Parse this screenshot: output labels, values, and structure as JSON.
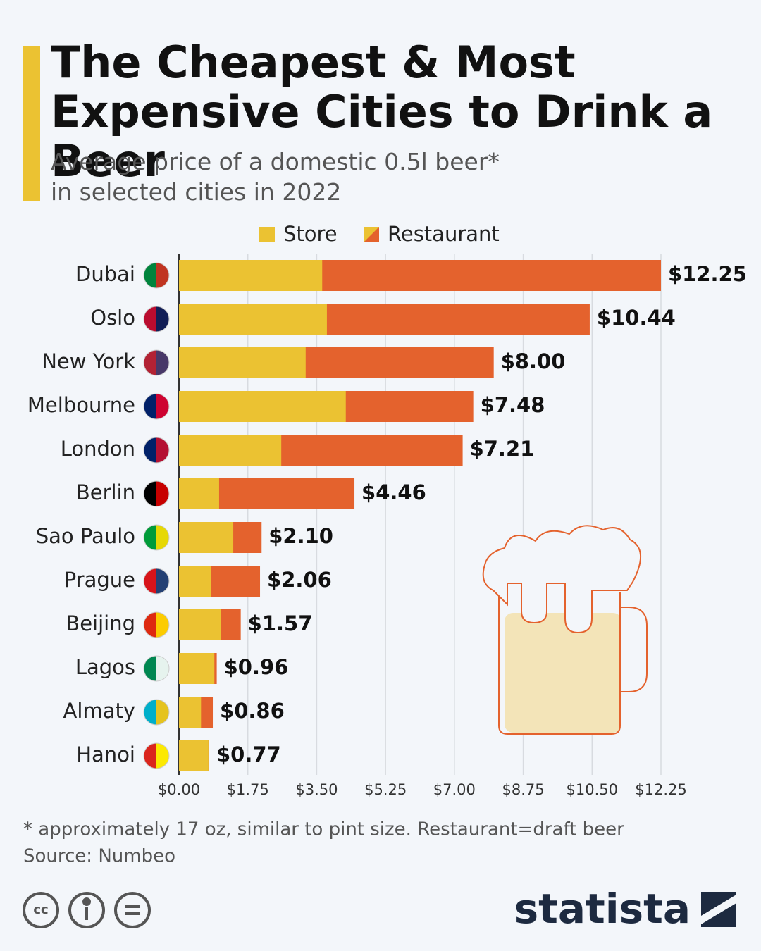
{
  "chart_data": {
    "type": "bar",
    "orientation": "horizontal",
    "title": "The Cheapest & Most Expensive Cities to Drink a Beer",
    "subtitle": "Average price of a domestic 0.5l beer* in selected cities in 2022",
    "categories": [
      "Dubai",
      "Oslo",
      "New York",
      "Melbourne",
      "London",
      "Berlin",
      "Sao Paulo",
      "Prague",
      "Beijing",
      "Lagos",
      "Almaty",
      "Hanoi"
    ],
    "series": [
      {
        "name": "Store",
        "color": "#ebc232",
        "values": [
          3.64,
          3.76,
          3.22,
          4.24,
          2.6,
          1.02,
          1.38,
          0.82,
          1.06,
          0.9,
          0.56,
          0.75
        ]
      },
      {
        "name": "Restaurant",
        "color": "#e4622d",
        "values": [
          12.25,
          10.44,
          8.0,
          7.48,
          7.21,
          4.46,
          2.1,
          2.06,
          1.57,
          0.96,
          0.86,
          0.77
        ],
        "value_labels": [
          "$12.25",
          "$10.44",
          "$8.00",
          "$7.48",
          "$7.21",
          "$4.46",
          "$2.10",
          "$2.06",
          "$1.57",
          "$0.96",
          "$0.86",
          "$0.77"
        ]
      }
    ],
    "xlim": [
      0,
      12.25
    ],
    "xticks": [
      {
        "value": 0,
        "label": "$0.00"
      },
      {
        "value": 1.75,
        "label": "$1.75"
      },
      {
        "value": 3.5,
        "label": "$3.50"
      },
      {
        "value": 5.25,
        "label": "$5.25"
      },
      {
        "value": 7,
        "label": "$7.00"
      },
      {
        "value": 8.75,
        "label": "$8.75"
      },
      {
        "value": 10.5,
        "label": "$10.50"
      },
      {
        "value": 12.25,
        "label": "$12.25"
      }
    ],
    "grid": true,
    "legend": "top",
    "footnote": "* approximately 17 oz, similar to pint size. Restaurant=draft beer",
    "source": "Source: Numbeo",
    "brand": "statista"
  }
}
